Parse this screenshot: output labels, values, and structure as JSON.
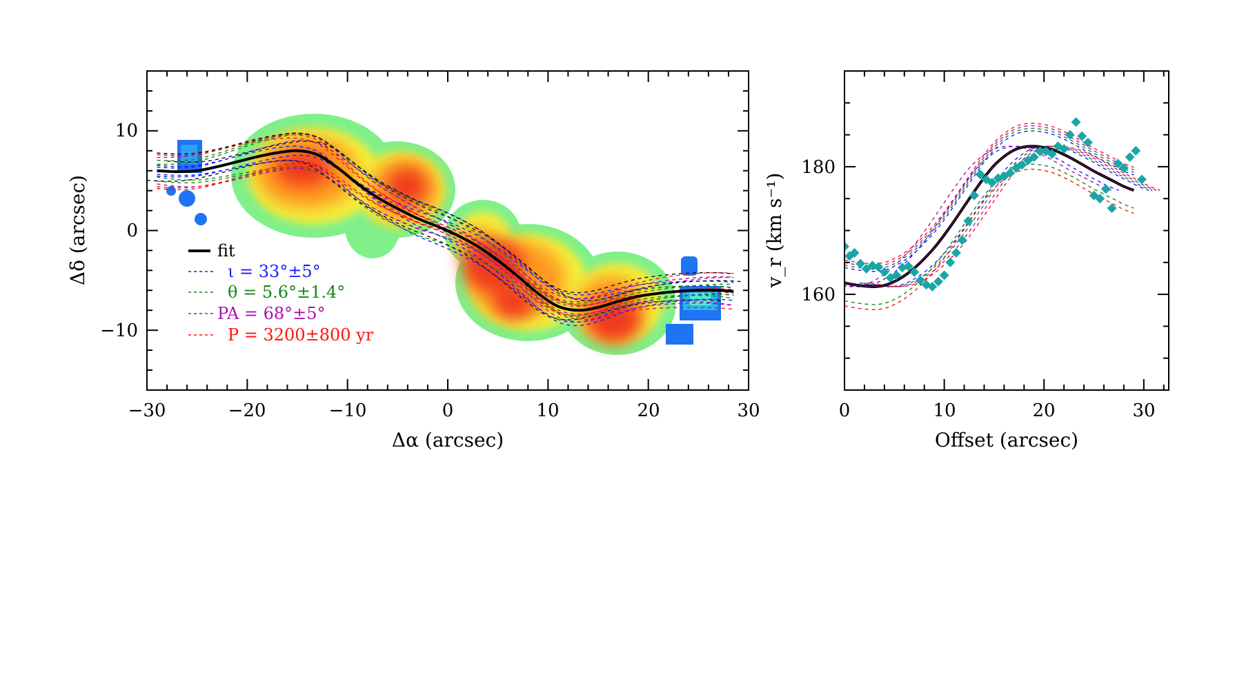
{
  "chart_data": [
    {
      "type": "map",
      "xlabel": "Δα (arcsec)",
      "ylabel": "Δδ (arcsec)",
      "xlim": [
        -30,
        30
      ],
      "ylim": [
        -16,
        16
      ],
      "xticks": [
        "−30",
        "−20",
        "−10",
        "0",
        "10",
        "20",
        "30"
      ],
      "yticks": [
        "10",
        "0",
        "−10"
      ],
      "legend_placement": "lower-left",
      "legend": [
        {
          "key": "fit",
          "label": "fit",
          "color": "#000000",
          "style": "solid"
        },
        {
          "key": "inclination",
          "label": "ι  = 33°±5°",
          "color": "#1a1aff",
          "style": "dashed"
        },
        {
          "key": "theta",
          "label": "θ  = 5.6°±1.4°",
          "color": "#118811",
          "style": "dashed"
        },
        {
          "key": "pa",
          "label": "PA = 68°±5°",
          "color": "#aa11aa",
          "style": "dashed"
        },
        {
          "key": "period",
          "label": "P = 3200±800 yr",
          "color": "#ff1111",
          "style": "dashed"
        }
      ],
      "fit_curve": {
        "x": [
          -29,
          -27,
          -25,
          -23,
          -21,
          -19,
          -17,
          -15,
          -13,
          -11,
          -9,
          -7,
          -5,
          -3,
          -1,
          1,
          3,
          5,
          7,
          9,
          11,
          13,
          15,
          17,
          19,
          21,
          23,
          25,
          27,
          28.5
        ],
        "y": [
          6.0,
          5.9,
          6.0,
          6.4,
          6.9,
          7.4,
          7.8,
          8.0,
          7.6,
          6.3,
          4.7,
          3.3,
          2.2,
          1.2,
          0.4,
          -0.5,
          -1.6,
          -3.0,
          -4.6,
          -6.3,
          -7.6,
          -8.0,
          -7.7,
          -7.1,
          -6.6,
          -6.3,
          -6.1,
          -6.0,
          -6.0,
          -6.1
        ]
      },
      "emission_map": "colour-coded velocity map with clumps from blue (low) to red (high) along the curve"
    },
    {
      "type": "scatter",
      "xlabel": "Offset (arcsec)",
      "ylabel": "v_r (km s⁻¹)",
      "xlim": [
        0,
        32.5
      ],
      "ylim": [
        145,
        195
      ],
      "xticks": [
        "0",
        "10",
        "20",
        "30"
      ],
      "yticks": [
        "160",
        "180"
      ],
      "series": [
        {
          "color": "#1aa6a6",
          "marker": "diamond",
          "x": [
            0,
            0.5,
            1,
            1.6,
            2.2,
            2.8,
            3.4,
            4,
            4.6,
            5.2,
            5.8,
            6.4,
            7,
            7.6,
            8.2,
            8.8,
            9.4,
            10,
            10.6,
            11.2,
            11.8,
            12.4,
            13,
            13.6,
            14.2,
            14.8,
            15.4,
            16,
            16.6,
            17.2,
            17.8,
            18.4,
            19,
            19.6,
            20.2,
            20.8,
            21.4,
            22,
            22.6,
            23.2,
            23.8,
            24.4,
            25,
            25.6,
            26.2,
            26.8,
            27.4,
            28,
            28.6,
            29.2,
            29.8
          ],
          "y": [
            167.5,
            166,
            166.5,
            164.8,
            164,
            164.5,
            164.3,
            163.5,
            162.6,
            163,
            164.2,
            164.4,
            163.5,
            162.2,
            161.5,
            161.2,
            162,
            163,
            165,
            166.5,
            168.5,
            171.5,
            175.5,
            178.8,
            178,
            177.5,
            178.2,
            178.5,
            179,
            179.8,
            180.3,
            181,
            181.5,
            182.4,
            182.4,
            182,
            183.2,
            182.8,
            185,
            187,
            184.8,
            183.8,
            175.5,
            175,
            176.5,
            173.5,
            180.5,
            179.8,
            181.5,
            182.5,
            178
          ]
        }
      ],
      "fit_curve": {
        "x": [
          0,
          1,
          2,
          3,
          4,
          5,
          6,
          7,
          8,
          9,
          10,
          11,
          12,
          13,
          14,
          15,
          16,
          17,
          18,
          19,
          20,
          21,
          22,
          23,
          24,
          25,
          26,
          27,
          28,
          29
        ],
        "y": [
          161.8,
          161.5,
          161.3,
          161.2,
          161.4,
          162.0,
          162.9,
          164.1,
          165.6,
          167.3,
          169.3,
          171.5,
          173.8,
          176.1,
          178.3,
          180.2,
          181.6,
          182.6,
          183.1,
          183.2,
          183.0,
          182.6,
          181.9,
          181.1,
          180.2,
          179.3,
          178.5,
          177.7,
          176.9,
          176.3
        ]
      }
    }
  ]
}
